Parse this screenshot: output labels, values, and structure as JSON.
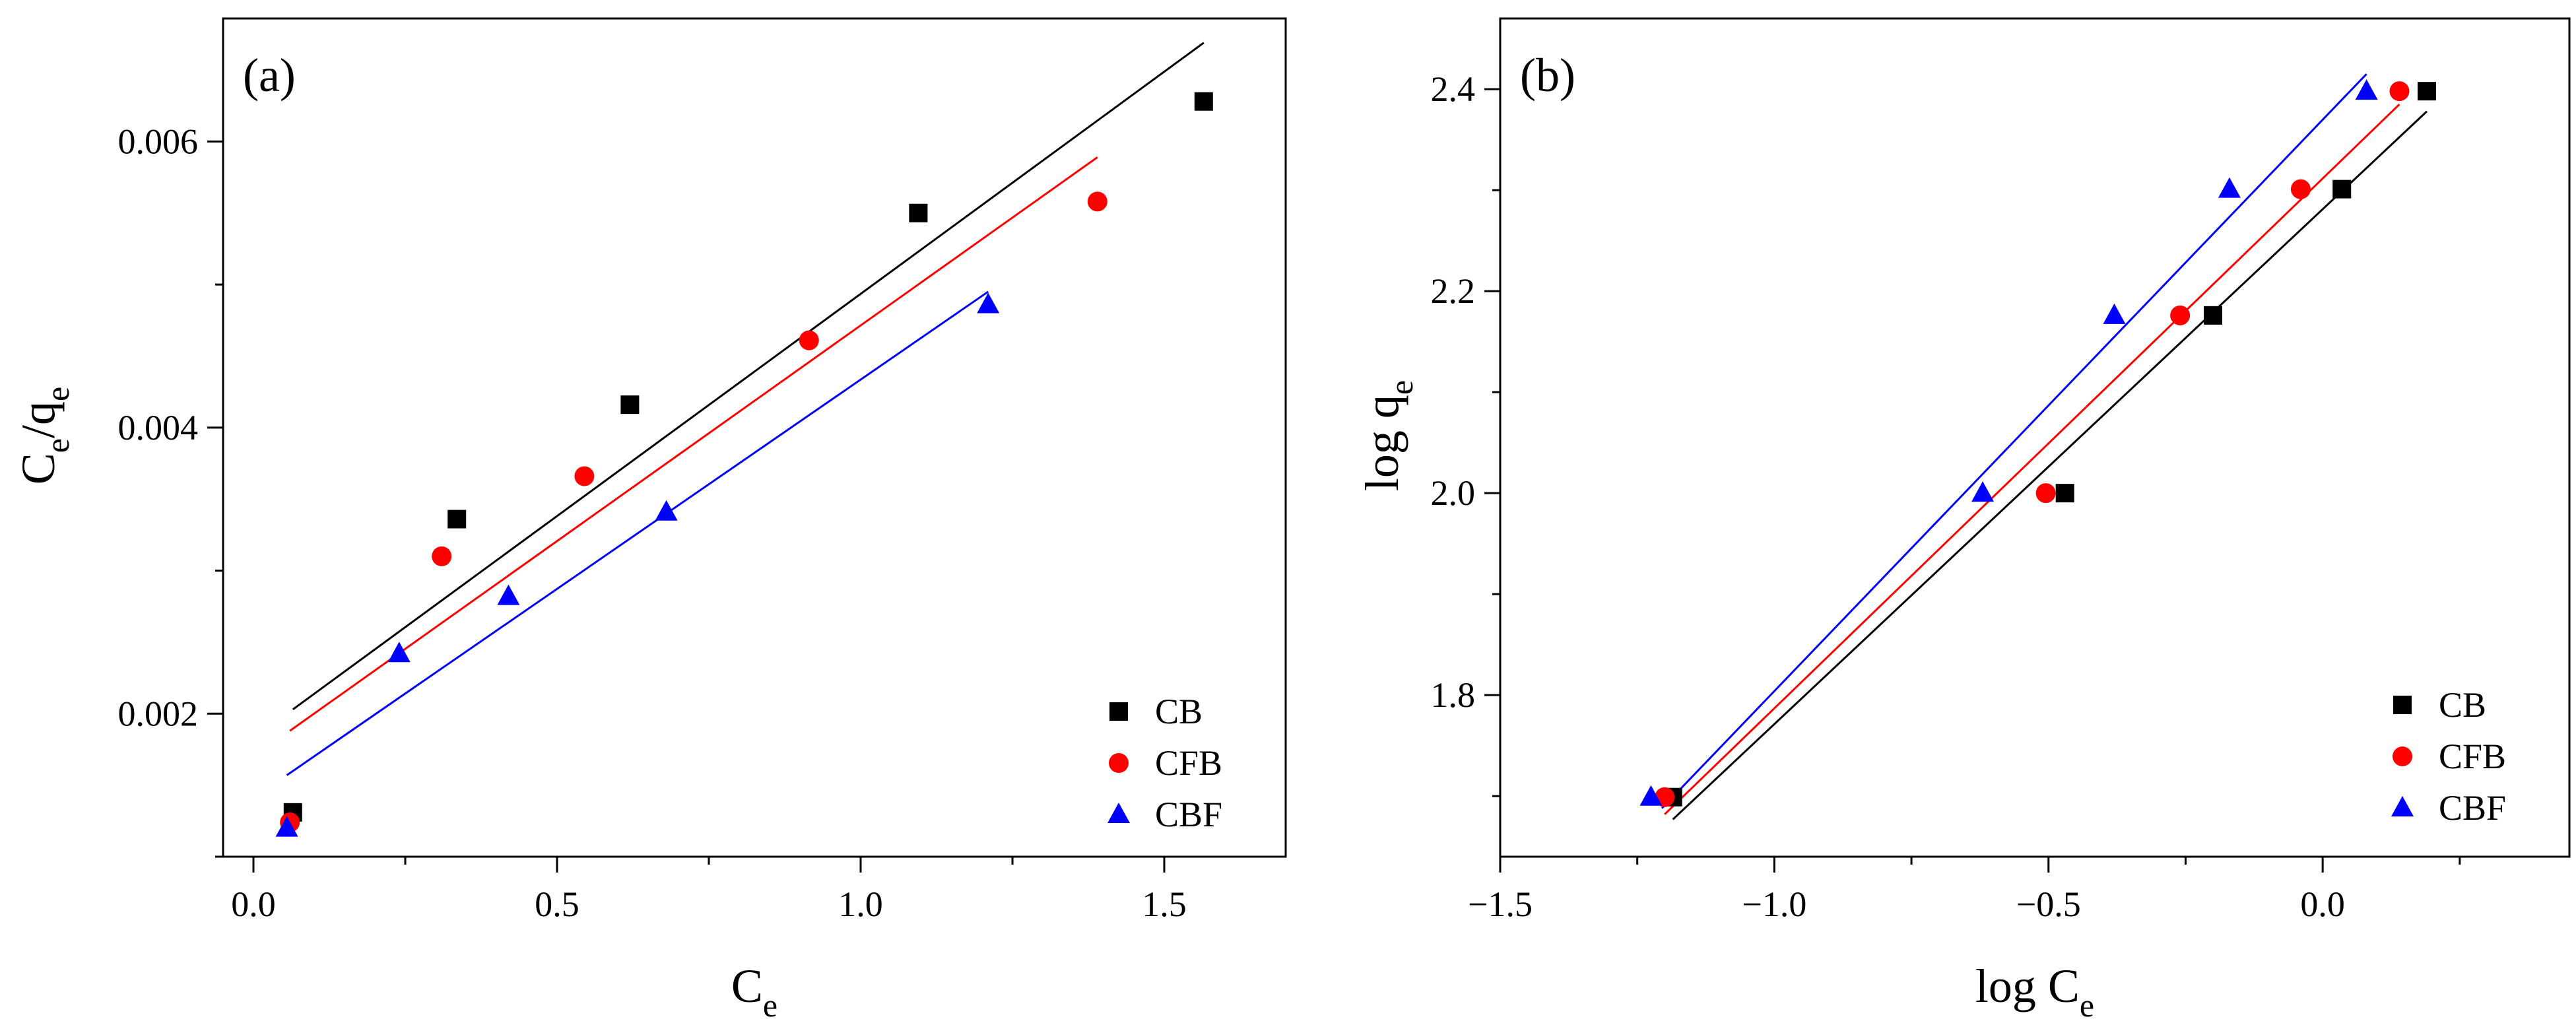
{
  "chart_data": [
    {
      "type": "scatter",
      "panel_label": "(a)",
      "xlabel": {
        "main": "C",
        "sub": "e"
      },
      "ylabel": {
        "parts": [
          "C",
          "e",
          "/q",
          "e"
        ]
      },
      "xlim": [
        -0.05,
        1.7
      ],
      "ylim": [
        0.001,
        0.00686
      ],
      "xticks": [
        0.0,
        0.5,
        1.0,
        1.5
      ],
      "xtick_labels": [
        "0.0",
        "0.5",
        "1.0",
        "1.5"
      ],
      "yticks": [
        0.002,
        0.004,
        0.006
      ],
      "ytick_labels": [
        "0.002",
        "0.004",
        "0.006"
      ],
      "x_minor_step": 0.25,
      "y_minor_step": 0.001,
      "legend_position": "bottom-right",
      "series": [
        {
          "name": "CB",
          "color": "#000000",
          "marker": "square",
          "x": [
            0.065,
            0.335,
            0.62,
            1.095,
            1.565
          ],
          "y": [
            0.00131,
            0.00336,
            0.00416,
            0.0055,
            0.00628
          ],
          "fit": {
            "x": [
              0.065,
              1.565
            ],
            "y": [
              0.00203,
              0.00669
            ]
          }
        },
        {
          "name": "CFB",
          "color": "#ff0000",
          "marker": "circle",
          "x": [
            0.06,
            0.31,
            0.545,
            0.915,
            1.39
          ],
          "y": [
            0.00124,
            0.0031,
            0.00366,
            0.00461,
            0.00558
          ],
          "fit": {
            "x": [
              0.06,
              1.39
            ],
            "y": [
              0.00188,
              0.00589
            ]
          }
        },
        {
          "name": "CBF",
          "color": "#0000ff",
          "marker": "triangle",
          "x": [
            0.055,
            0.24,
            0.42,
            0.68,
            1.21
          ],
          "y": [
            0.0012,
            0.00242,
            0.00282,
            0.00341,
            0.00486
          ],
          "fit": {
            "x": [
              0.055,
              1.21
            ],
            "y": [
              0.00157,
              0.00495
            ]
          }
        }
      ]
    },
    {
      "type": "scatter",
      "panel_label": "(b)",
      "xlabel": {
        "main": "log C",
        "sub": "e"
      },
      "ylabel": {
        "parts": [
          "log q",
          "e"
        ]
      },
      "xlim": [
        -1.5,
        0.45
      ],
      "ylim": [
        1.64,
        2.47
      ],
      "xticks": [
        -1.5,
        -1.0,
        -0.5,
        0.0
      ],
      "xtick_labels": [
        "−1.5",
        "−1.0",
        "−0.5",
        "0.0"
      ],
      "yticks": [
        1.8,
        2.0,
        2.2,
        2.4
      ],
      "ytick_labels": [
        "1.8",
        "2.0",
        "2.2",
        "2.4"
      ],
      "x_minor_step": 0.25,
      "y_minor_step": 0.1,
      "legend_position": "bottom-right",
      "series": [
        {
          "name": "CB",
          "color": "#000000",
          "marker": "square",
          "x": [
            -1.185,
            -0.47,
            -0.2,
            0.035,
            0.19
          ],
          "y": [
            1.699,
            2.0,
            2.176,
            2.301,
            2.398
          ],
          "fit": {
            "x": [
              -1.185,
              0.19
            ],
            "y": [
              1.677,
              2.378
            ]
          }
        },
        {
          "name": "CFB",
          "color": "#ff0000",
          "marker": "circle",
          "x": [
            -1.2,
            -0.505,
            -0.26,
            -0.04,
            0.14
          ],
          "y": [
            1.699,
            2.0,
            2.176,
            2.301,
            2.398
          ],
          "fit": {
            "x": [
              -1.2,
              0.14
            ],
            "y": [
              1.682,
              2.385
            ]
          }
        },
        {
          "name": "CBF",
          "color": "#0000ff",
          "marker": "triangle",
          "x": [
            -1.225,
            -0.62,
            -0.38,
            -0.17,
            0.08
          ],
          "y": [
            1.699,
            2.0,
            2.176,
            2.301,
            2.398
          ],
          "fit": {
            "x": [
              -1.205,
              0.08
            ],
            "y": [
              1.688,
              2.415
            ]
          }
        }
      ]
    }
  ]
}
